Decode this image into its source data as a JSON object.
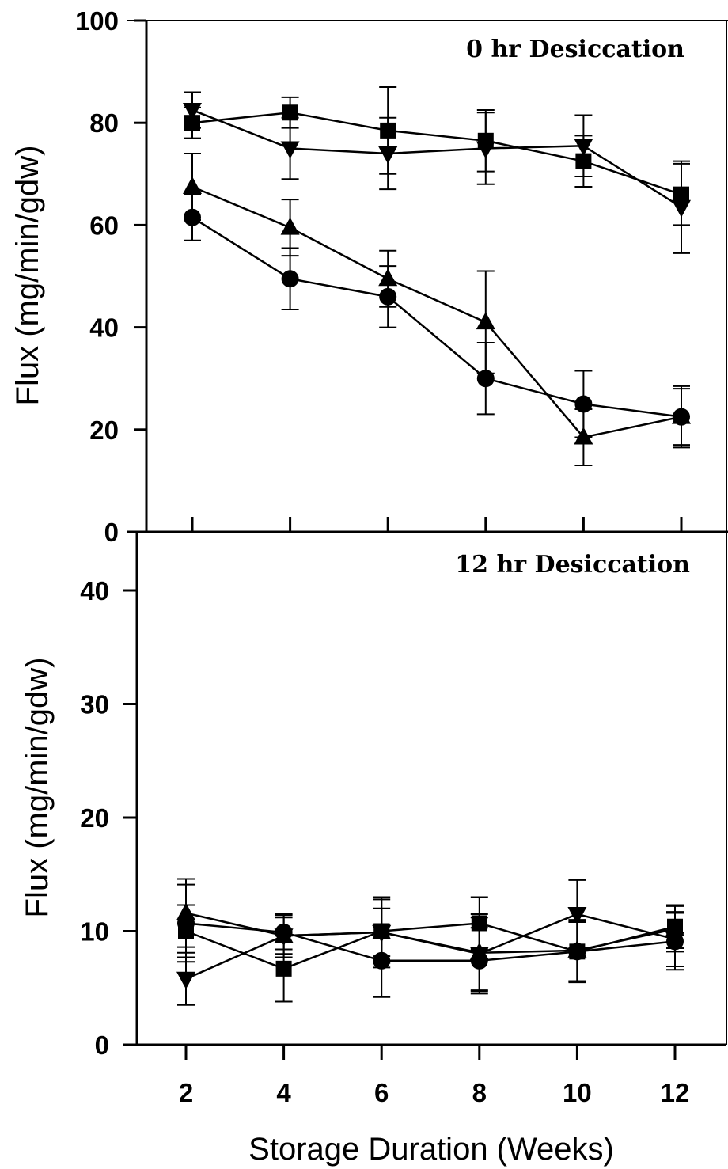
{
  "chart_data": {
    "type": "line",
    "xlabel": "Storage Duration (Weeks)",
    "x_ticks": [
      "2",
      "4",
      "6",
      "8",
      "10",
      "12"
    ],
    "xlim": [
      1,
      13
    ],
    "x": [
      2,
      4,
      6,
      8,
      10,
      12
    ],
    "panels": [
      {
        "title": "0 hr Desiccation",
        "ylabel": "Flux (mg/min/gdw)",
        "ylim": [
          0,
          100
        ],
        "y_ticks": [
          "0",
          "20",
          "40",
          "60",
          "80",
          "100"
        ],
        "series": [
          {
            "marker": "square",
            "values": [
              80,
              82,
              78.5,
              76.5,
              72.5,
              66
            ],
            "errors": [
              3,
              3,
              8.5,
              6,
              5,
              6
            ]
          },
          {
            "marker": "triangle-down",
            "values": [
              82.5,
              75,
              74,
              75,
              75.5,
              63.5
            ],
            "errors": [
              3.5,
              6,
              7,
              7,
              6,
              9
            ]
          },
          {
            "marker": "triangle-up",
            "values": [
              67.5,
              59.5,
              49.5,
              41,
              18.5,
              22.5
            ],
            "errors": [
              6.5,
              5.5,
              5.5,
              10,
              5.5,
              5.5
            ]
          },
          {
            "marker": "circle",
            "values": [
              61.5,
              49.5,
              46,
              30,
              25,
              22.5
            ],
            "errors": [
              4.5,
              6,
              6,
              7,
              6.5,
              6
            ]
          }
        ]
      },
      {
        "title": "12 hr Desiccation",
        "ylabel": "Flux (mg/min/gdw)",
        "ylim": [
          0,
          45
        ],
        "y_ticks": [
          "0",
          "10",
          "20",
          "30",
          "40"
        ],
        "series": [
          {
            "marker": "square",
            "values": [
              10,
              6.7,
              10,
              10.7,
              8.2,
              10.4
            ],
            "errors": [
              2.3,
              2.9,
              2.8,
              2.3,
              2.7,
              1.9
            ]
          },
          {
            "marker": "triangle-down",
            "values": [
              5.8,
              9.6,
              9.9,
              8,
              11.5,
              9.3
            ],
            "errors": [
              2.3,
              1.9,
              2.1,
              3.2,
              3,
              2.4
            ]
          },
          {
            "marker": "triangle-up",
            "values": [
              11.6,
              9.6,
              9.9,
              8.1,
              8.3,
              10.2
            ],
            "errors": [
              3,
              1.6,
              3.1,
              3.4,
              2.7,
              2
            ]
          },
          {
            "marker": "circle",
            "values": [
              10.7,
              9.9,
              7.4,
              7.4,
              8.2,
              9.1
            ],
            "errors": [
              3.4,
              1.5,
              3.2,
              2.9,
              2.6,
              2.5
            ]
          }
        ]
      }
    ]
  }
}
